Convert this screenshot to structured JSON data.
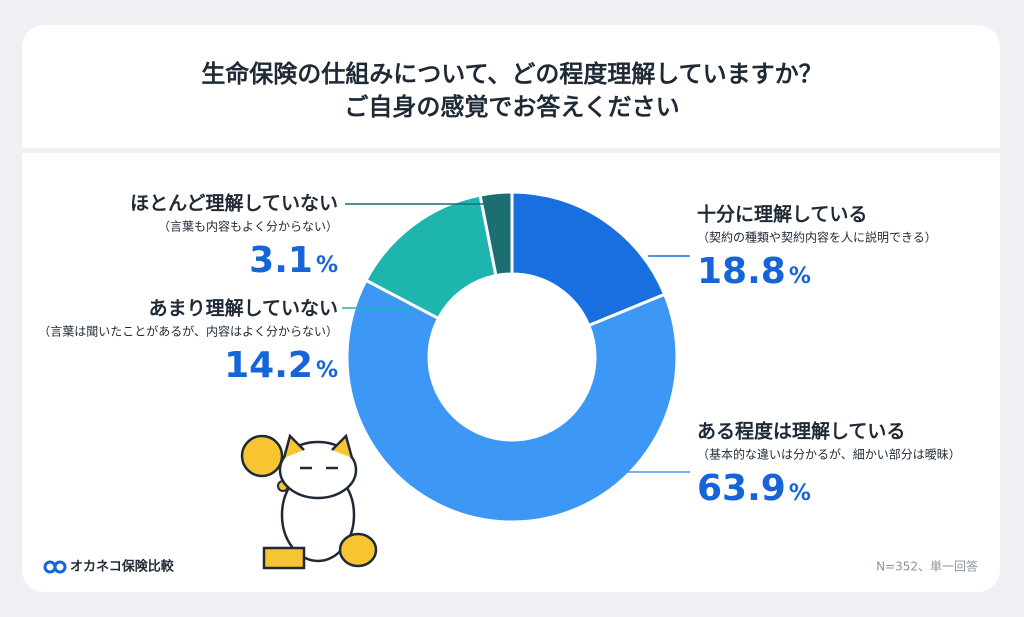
{
  "chart_data": {
    "type": "donut",
    "title": [
      "生命保険の仕組みについて、どの程度理解していますか？",
      "ご自身の感覚でお答えください"
    ],
    "categories": [
      "十分に理解している",
      "ある程度は理解している",
      "あまり理解していない",
      "ほとんど理解していない"
    ],
    "descriptions": [
      "（契約の種類や契約内容を人に説明できる）",
      "（基本的な違いは分かるが、細かい部分は曖昧）",
      "（言葉は聞いたことがあるが、内容はよく分からない）",
      "（言葉も内容もよく分からない）"
    ],
    "values": [
      18.8,
      63.9,
      14.2,
      3.1
    ],
    "value_suffix": "%",
    "colors": [
      "#1a6fe0",
      "#3d97f5",
      "#1db5ae",
      "#1b6f73"
    ],
    "note": "N=352、単一回答",
    "brand": "オカネコ保険比較"
  }
}
